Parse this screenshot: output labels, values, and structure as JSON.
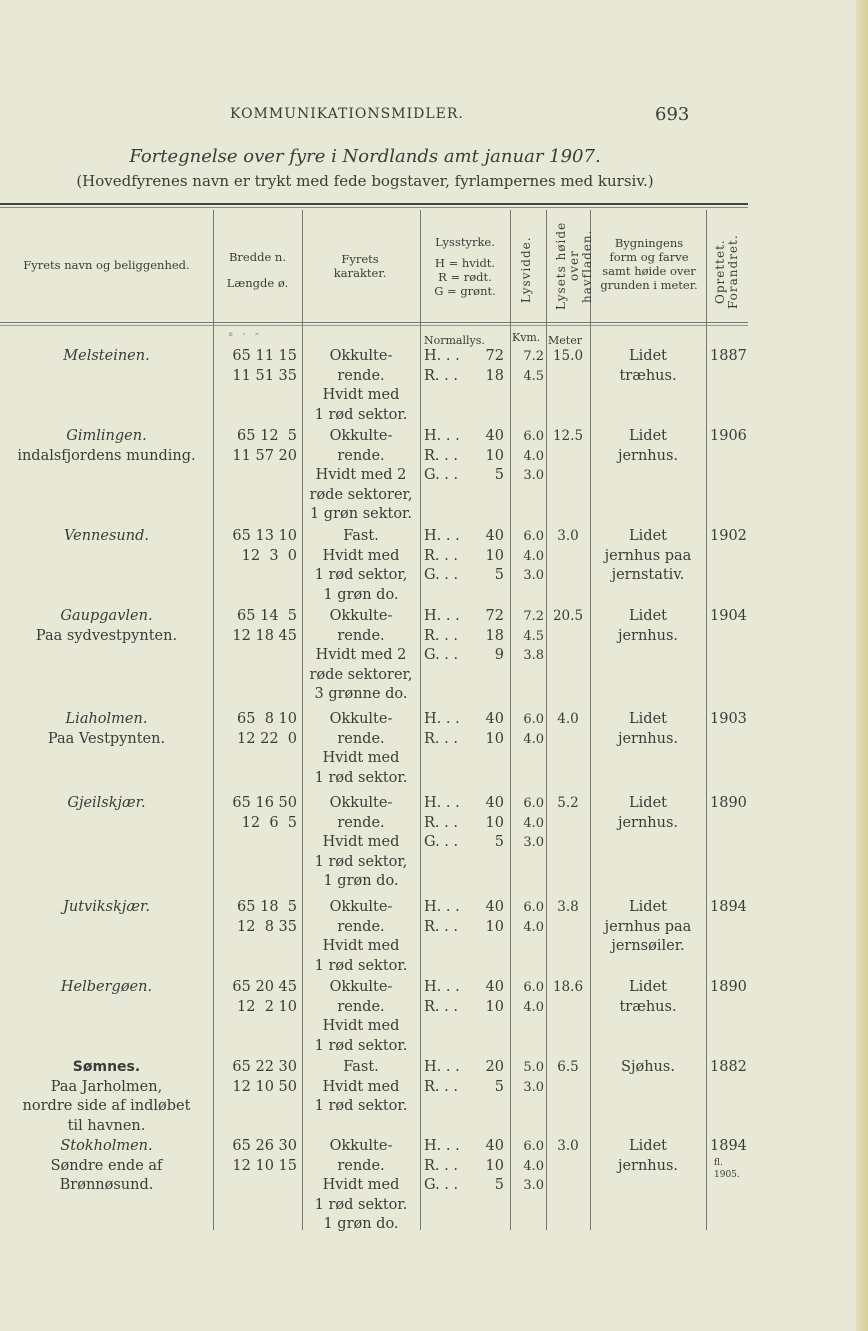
{
  "header": {
    "running_head": "KOMMUNIKATIONSMIDLER.",
    "page_number": "693"
  },
  "title": "Fortegnelse over fyre i Nordlands amt januar 1907.",
  "subtitle": "(Hovedfyrenes navn er trykt med fede bogstaver, fyrlampernes med kursiv.)",
  "columns": {
    "name": "Fyrets navn og beliggenhed.",
    "lat": "Bredde n.",
    "lon": "Længde ø.",
    "character": "Fyrets karakter.",
    "intensity": "Lysstyrke.",
    "intensity_key": [
      "H = hvidt.",
      "R = rødt.",
      "G = grønt."
    ],
    "range": "Lysvidde.",
    "height": "Lysets høide over havfladen.",
    "building": "Bygningens form og farve samt høide over grunden i meter.",
    "year": "Oprettet. Forandret."
  },
  "units": {
    "coords": "°   ′   ″",
    "intensity": "Normallys.",
    "range": "Kvm.",
    "height": "Meter"
  },
  "rows": [
    {
      "name": "Melsteinen.",
      "style": "it",
      "location": [],
      "lat": "65 11 15",
      "lon": "11 51 35",
      "character": [
        "Okkulte-",
        "rende.",
        "Hvidt med",
        "1 rød sektor."
      ],
      "light": [
        {
          "c": "H. . .",
          "v": "72"
        },
        {
          "c": "R. . .",
          "v": "18"
        }
      ],
      "range": [
        "7.2",
        "4.5"
      ],
      "height": "15.0",
      "building": [
        "Lidet",
        "træhus."
      ],
      "year": [
        "1887"
      ]
    },
    {
      "name": "Gimlingen.",
      "style": "it",
      "location": [
        "indalsfjordens munding."
      ],
      "lat": "65 12  5",
      "lon": "11 57 20",
      "character": [
        "Okkulte-",
        "rende.",
        "Hvidt med 2",
        "røde sektorer,",
        "1 grøn sektor."
      ],
      "light": [
        {
          "c": "H. . .",
          "v": "40"
        },
        {
          "c": "R. . .",
          "v": "10"
        },
        {
          "c": "G. . .",
          "v": "5"
        }
      ],
      "range": [
        "6.0",
        "4.0",
        "3.0"
      ],
      "height": "12.5",
      "building": [
        "Lidet",
        "jernhus."
      ],
      "year": [
        "1906"
      ]
    },
    {
      "name": "Vennesund.",
      "style": "it",
      "location": [],
      "lat": "65 13 10",
      "lon": "12  3  0",
      "character": [
        "Fast.",
        "Hvidt med",
        "1 rød sektor,",
        "1 grøn do."
      ],
      "light": [
        {
          "c": "H. . .",
          "v": "40"
        },
        {
          "c": "R. . .",
          "v": "10"
        },
        {
          "c": "G. . .",
          "v": "5"
        }
      ],
      "range": [
        "6.0",
        "4.0",
        "3.0"
      ],
      "height": "3.0",
      "building": [
        "Lidet",
        "jernhus paa",
        "jernstativ."
      ],
      "year": [
        "1902"
      ]
    },
    {
      "name": "Gaupgavlen.",
      "style": "it",
      "location": [
        "Paa sydvestpynten."
      ],
      "lat": "65 14  5",
      "lon": "12 18 45",
      "character": [
        "Okkulte-",
        "rende.",
        "Hvidt med 2",
        "røde sektorer,",
        "3 grønne do."
      ],
      "light": [
        {
          "c": "H. . .",
          "v": "72"
        },
        {
          "c": "R. . .",
          "v": "18"
        },
        {
          "c": "G. . .",
          "v": "9"
        }
      ],
      "range": [
        "7.2",
        "4.5",
        "3.8"
      ],
      "height": "20.5",
      "building": [
        "Lidet",
        "jernhus."
      ],
      "year": [
        "1904"
      ]
    },
    {
      "name": "Liaholmen.",
      "style": "it",
      "location": [
        "Paa Vestpynten."
      ],
      "lat": "65  8 10",
      "lon": "12 22  0",
      "character": [
        "Okkulte-",
        "rende.",
        "Hvidt med",
        "1 rød sektor."
      ],
      "light": [
        {
          "c": "H. . .",
          "v": "40"
        },
        {
          "c": "R. . .",
          "v": "10"
        }
      ],
      "range": [
        "6.0",
        "4.0"
      ],
      "height": "4.0",
      "building": [
        "Lidet",
        "jernhus."
      ],
      "year": [
        "1903"
      ]
    },
    {
      "name": "Gjeilskjær.",
      "style": "it",
      "location": [],
      "lat": "65 16 50",
      "lon": "12  6  5",
      "character": [
        "Okkulte-",
        "rende.",
        "Hvidt med",
        "1 rød sektor,",
        "1 grøn do."
      ],
      "light": [
        {
          "c": "H. . .",
          "v": "40"
        },
        {
          "c": "R. . .",
          "v": "10"
        },
        {
          "c": "G. . .",
          "v": "5"
        }
      ],
      "range": [
        "6.0",
        "4.0",
        "3.0"
      ],
      "height": "5.2",
      "building": [
        "Lidet",
        "jernhus."
      ],
      "year": [
        "1890"
      ]
    },
    {
      "name": "Jutvikskjær.",
      "style": "it",
      "location": [],
      "lat": "65 18  5",
      "lon": "12  8 35",
      "character": [
        "Okkulte-",
        "rende.",
        "Hvidt med",
        "1 rød sektor."
      ],
      "light": [
        {
          "c": "H. . .",
          "v": "40"
        },
        {
          "c": "R. . .",
          "v": "10"
        }
      ],
      "range": [
        "6.0",
        "4.0"
      ],
      "height": "3.8",
      "building": [
        "Lidet",
        "jernhus paa",
        "jernsøiler."
      ],
      "year": [
        "1894"
      ]
    },
    {
      "name": "Helbergøen.",
      "style": "it",
      "location": [],
      "lat": "65 20 45",
      "lon": "12  2 10",
      "character": [
        "Okkulte-",
        "rende.",
        "Hvidt med",
        "1 rød sektor."
      ],
      "light": [
        {
          "c": "H. . .",
          "v": "40"
        },
        {
          "c": "R. . .",
          "v": "10"
        }
      ],
      "range": [
        "6.0",
        "4.0"
      ],
      "height": "18.6",
      "building": [
        "Lidet",
        "træhus."
      ],
      "year": [
        "1890"
      ]
    },
    {
      "name": "Sømnes.",
      "style": "bd",
      "location": [
        "Paa Jarholmen,",
        "nordre side af indløbet",
        "til havnen."
      ],
      "lat": "65 22 30",
      "lon": "12 10 50",
      "character": [
        "Fast.",
        "Hvidt med",
        "1 rød sektor."
      ],
      "light": [
        {
          "c": "H. . .",
          "v": "20"
        },
        {
          "c": "R. . .",
          "v": "5"
        }
      ],
      "range": [
        "5.0",
        "3.0"
      ],
      "height": "6.5",
      "building": [
        "Sjøhus."
      ],
      "year": [
        "1882"
      ]
    },
    {
      "name": "Stokholmen.",
      "style": "it",
      "location": [
        "Søndre ende af",
        "Brønnøsund."
      ],
      "lat": "65 26 30",
      "lon": "12 10 15",
      "character": [
        "Okkulte-",
        "rende.",
        "Hvidt med",
        "1 rød sektor.",
        "1 grøn do."
      ],
      "light": [
        {
          "c": "H. . .",
          "v": "40"
        },
        {
          "c": "R. . .",
          "v": "10"
        },
        {
          "c": "G. . .",
          "v": "5"
        }
      ],
      "range": [
        "6.0",
        "4.0",
        "3.0"
      ],
      "height": "3.0",
      "building": [
        "Lidet",
        "jernhus."
      ],
      "year": [
        "1894",
        "fl.",
        "1905."
      ]
    }
  ]
}
